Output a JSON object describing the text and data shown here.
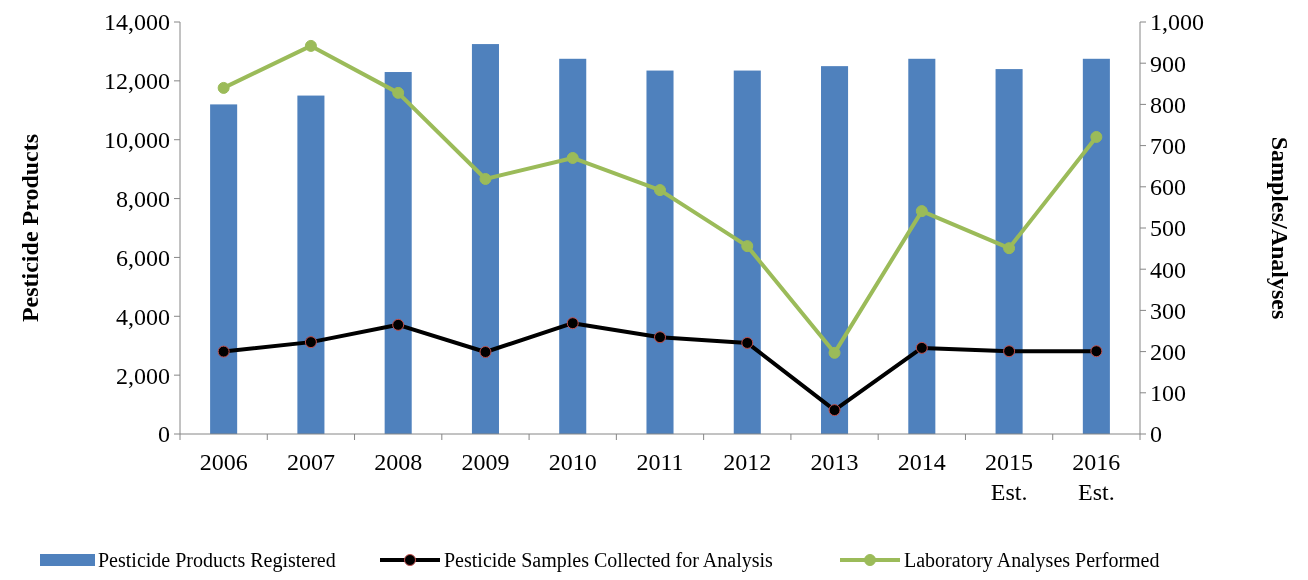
{
  "chart_data": {
    "type": "bar",
    "ylabel": "Pesticide Products",
    "y2label": "Samples/Analyses",
    "categories": [
      "2006",
      "2007",
      "2008",
      "2009",
      "2010",
      "2011",
      "2012",
      "2013",
      "2014",
      "2015\nEst.",
      "2016\nEst."
    ],
    "series": [
      {
        "name": "Pesticide Products Registered",
        "color": "#4f81bd",
        "values": [
          11200,
          11500,
          12300,
          13250,
          12750,
          12350,
          12350,
          12500,
          12750,
          12400,
          12750
        ]
      },
      {
        "name": "Pesticide Samples Collected for Analysis",
        "type": "line",
        "axis": "y2",
        "color": "#000000",
        "marker": "circle",
        "values": [
          200,
          223,
          265,
          199,
          269,
          235,
          221,
          58,
          209,
          201,
          201
        ]
      },
      {
        "name": "Laboratory Analyses Performed",
        "type": "line",
        "axis": "y2",
        "color": "#9bbb59",
        "marker": "circle",
        "values": [
          840,
          942,
          828,
          619,
          670,
          592,
          456,
          197,
          541,
          451,
          721
        ]
      }
    ],
    "ylim": [
      0,
      14000
    ],
    "yticks": [
      {
        "value": 0,
        "label": "0"
      },
      {
        "value": 2000,
        "label": "2,000"
      },
      {
        "value": 4000,
        "label": "4,000"
      },
      {
        "value": 6000,
        "label": "6,000"
      },
      {
        "value": 8000,
        "label": "8,000"
      },
      {
        "value": 10000,
        "label": "10,000"
      },
      {
        "value": 12000,
        "label": "12,000"
      },
      {
        "value": 14000,
        "label": "14,000"
      }
    ],
    "y2lim": [
      0,
      1000
    ],
    "y2ticks": [
      {
        "value": 0,
        "label": "0"
      },
      {
        "value": 100,
        "label": "100"
      },
      {
        "value": 200,
        "label": "200"
      },
      {
        "value": 300,
        "label": "300"
      },
      {
        "value": 400,
        "label": "400"
      },
      {
        "value": 500,
        "label": "500"
      },
      {
        "value": 600,
        "label": "600"
      },
      {
        "value": 700,
        "label": "700"
      },
      {
        "value": 800,
        "label": "800"
      },
      {
        "value": 900,
        "label": "900"
      },
      {
        "value": 1000,
        "label": "1,000"
      }
    ],
    "grid": false,
    "legend": "bottom"
  }
}
